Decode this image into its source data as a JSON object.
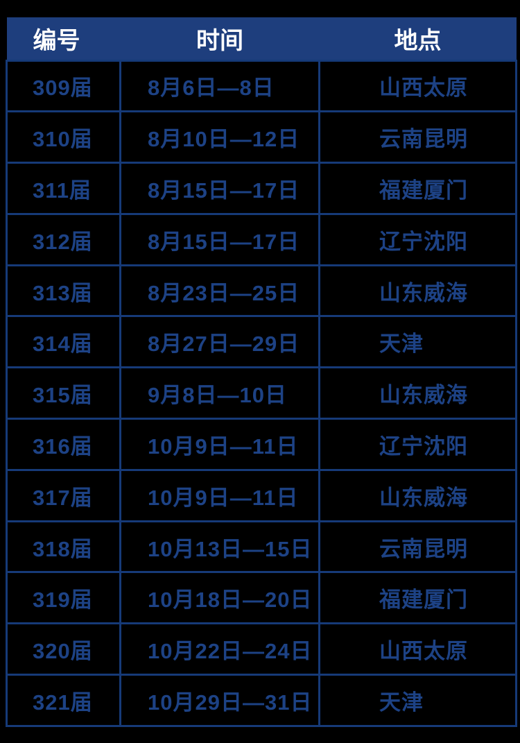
{
  "chart_data": {
    "type": "table",
    "title": "",
    "columns": [
      "编号",
      "时间",
      "地点"
    ],
    "rows": [
      [
        "309届",
        "8月6日—8日",
        "山西太原"
      ],
      [
        "310届",
        "8月10日—12日",
        "云南昆明"
      ],
      [
        "311届",
        "8月15日—17日",
        "福建厦门"
      ],
      [
        "312届",
        "8月15日—17日",
        "辽宁沈阳"
      ],
      [
        "313届",
        "8月23日—25日",
        "山东威海"
      ],
      [
        "314届",
        "8月27日—29日",
        "天津"
      ],
      [
        "315届",
        "9月8日—10日",
        "山东威海"
      ],
      [
        "316届",
        "10月9日—11日",
        "辽宁沈阳"
      ],
      [
        "317届",
        "10月9日—11日",
        "山东威海"
      ],
      [
        "318届",
        "10月13日—15日",
        "云南昆明"
      ],
      [
        "319届",
        "10月18日—20日",
        "福建厦门"
      ],
      [
        "320届",
        "10月22日—24日",
        "山西太原"
      ],
      [
        "321届",
        "10月29日—31日",
        "天津"
      ]
    ],
    "layout": {
      "grid": "on",
      "header_position": "top"
    }
  },
  "colors": {
    "page_bg": "#000000",
    "header_bg": "#1e3e7d",
    "header_text": "#ffffff",
    "grid_border": "#163a78",
    "cell_text": "#1d4285"
  }
}
